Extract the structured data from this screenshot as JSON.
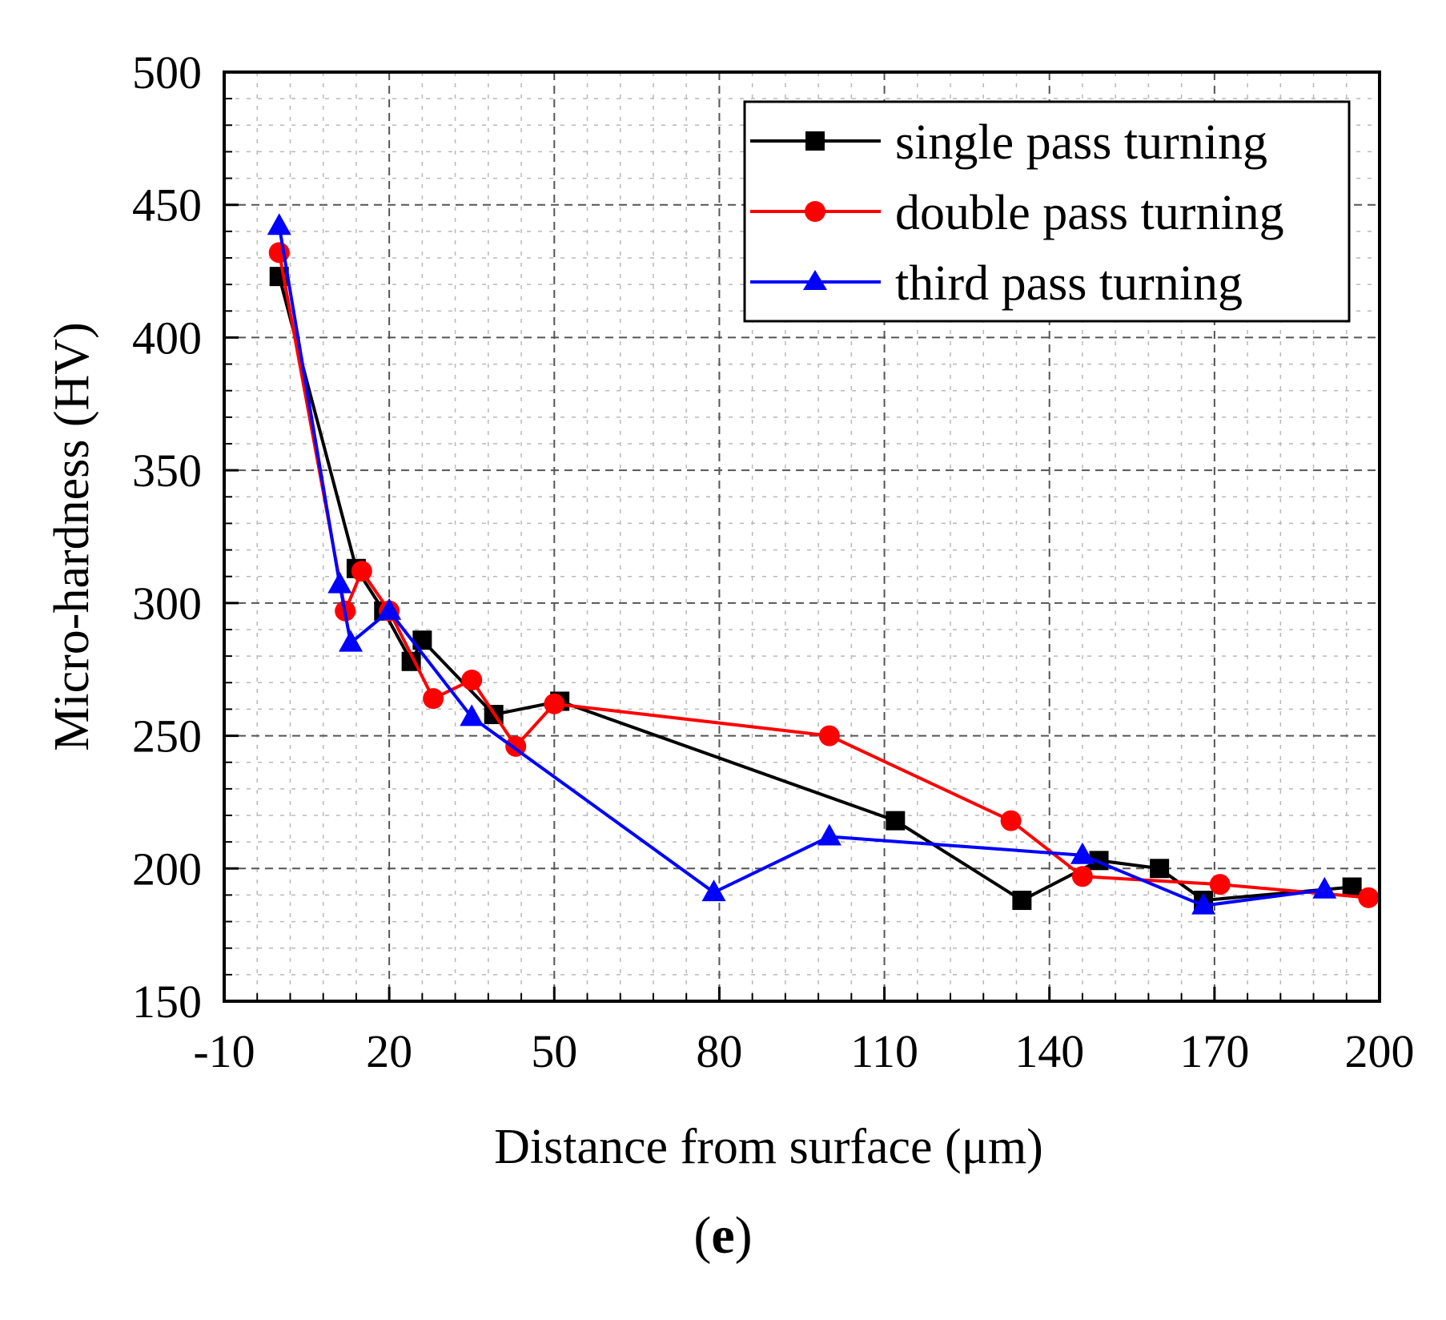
{
  "chart_data": {
    "type": "line",
    "title": "",
    "xlabel": "Distance from surface (μm)",
    "ylabel": "Micro-hardness (HV)",
    "xlim": [
      -10,
      200
    ],
    "ylim": [
      150,
      500
    ],
    "xticks": [
      -10,
      20,
      50,
      80,
      110,
      140,
      170,
      200
    ],
    "yticks": [
      150,
      200,
      250,
      300,
      350,
      400,
      450,
      500
    ],
    "grid": true,
    "legend_position": "top-right",
    "series": [
      {
        "name": "single pass turning",
        "color": "#000000",
        "marker": "square",
        "x": [
          0,
          14,
          19,
          24,
          26,
          39,
          51,
          112,
          135,
          149,
          160,
          168,
          195
        ],
        "y": [
          423,
          313,
          297,
          278,
          286,
          258,
          263,
          218,
          188,
          203,
          200,
          188,
          193
        ]
      },
      {
        "name": "double pass turning",
        "color": "#ff0000",
        "marker": "circle",
        "x": [
          0,
          12,
          15,
          20,
          28,
          35,
          43,
          50,
          100,
          133,
          146,
          171,
          198
        ],
        "y": [
          432,
          297,
          312,
          297,
          264,
          271,
          246,
          262,
          250,
          218,
          197,
          194,
          189
        ]
      },
      {
        "name": "third pass turning",
        "color": "#0000ff",
        "marker": "triangle",
        "x": [
          0,
          11,
          13,
          20,
          35,
          79,
          100,
          146,
          168,
          190
        ],
        "y": [
          442,
          307,
          285,
          297,
          257,
          191,
          212,
          205,
          186,
          192
        ]
      }
    ]
  },
  "caption": {
    "open": "(",
    "letter": "e",
    "close": ")"
  }
}
